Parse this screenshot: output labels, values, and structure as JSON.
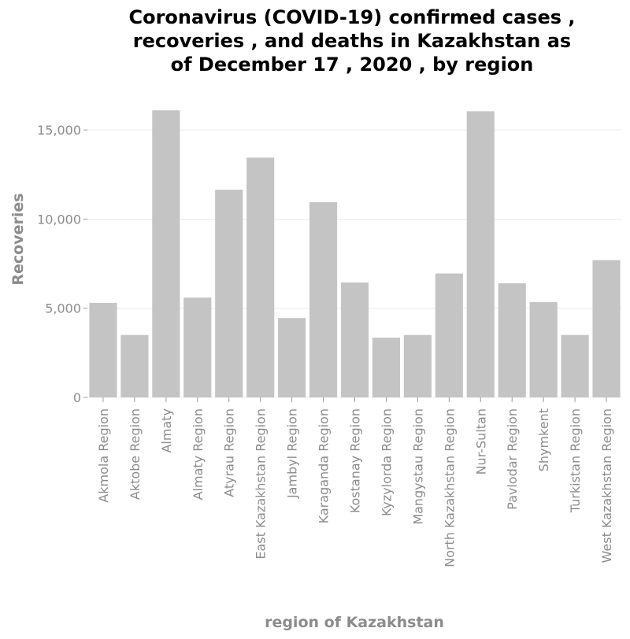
{
  "chart_data": {
    "type": "bar",
    "title": "Coronavirus (COVID-19) confirmed cases , recoveries , and deaths in Kazakhstan as of December 17 , 2020 , by region",
    "title_lines": [
      "Coronavirus (COVID-19) confirmed cases ,",
      "recoveries , and deaths in Kazakhstan as",
      "of December 17 , 2020 , by region"
    ],
    "xlabel": "region of Kazakhstan",
    "ylabel": "Recoveries",
    "ylim": [
      0,
      17700
    ],
    "yticks": [
      0,
      5000,
      10000,
      15000
    ],
    "ytick_labels": [
      "0",
      "5,000",
      "10,000",
      "15,000"
    ],
    "grid": true,
    "categories": [
      "Akmola Region",
      "Aktobe Region",
      "Almaty",
      "Almaty Region",
      "Atyrau Region",
      "East Kazakhstan Region",
      "Jambyl Region",
      "Karaganda Region",
      "Kostanay Region",
      "Kyzylorda Region",
      "Mangystau Region",
      "North Kazakhstan Region",
      "Nur-Sultan",
      "Pavlodar Region",
      "Shymkent",
      "Turkistan Region",
      "West Kazakhstan Region"
    ],
    "values": [
      5300,
      3500,
      16100,
      5600,
      11650,
      13450,
      4450,
      10950,
      6450,
      3350,
      3500,
      6950,
      16050,
      6400,
      5350,
      3500,
      7700
    ],
    "colors": {
      "bar": "#c4c4c4",
      "text": "#8c8c8c",
      "title": "#000000"
    }
  }
}
